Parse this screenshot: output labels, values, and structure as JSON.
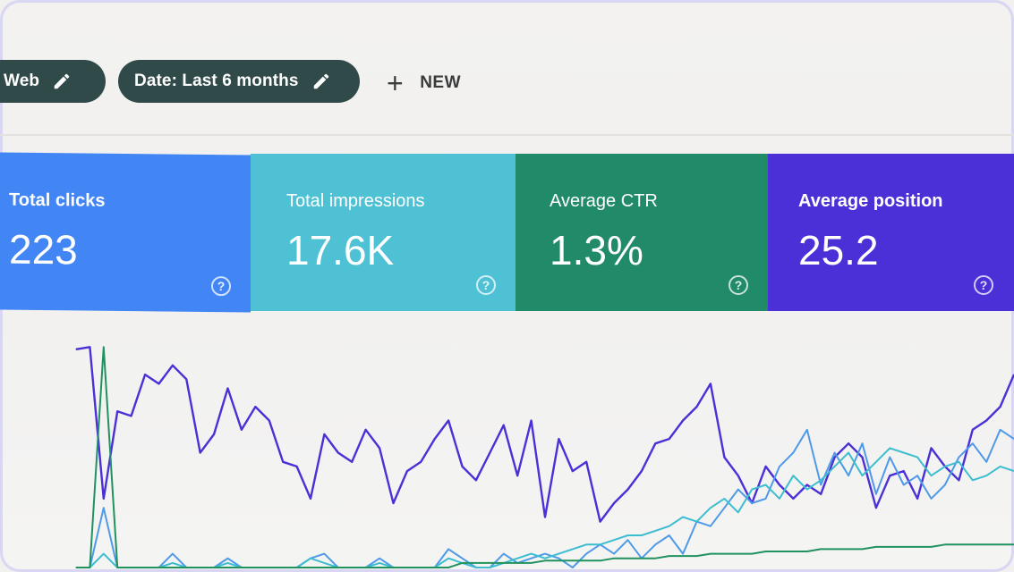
{
  "filters": {
    "type_chip": "Web",
    "date_chip": "Date: Last 6 months",
    "new_label": "NEW"
  },
  "metrics": [
    {
      "label": "Total clicks",
      "value": "223",
      "color": "#4285f4"
    },
    {
      "label": "Total impressions",
      "value": "17.6K",
      "color": "#4fc1d4"
    },
    {
      "label": "Average CTR",
      "value": "1.3%",
      "color": "#218a68"
    },
    {
      "label": "Average position",
      "value": "25.2",
      "color": "#4a30d6"
    }
  ],
  "help_glyph": "?",
  "chart_data": {
    "type": "line",
    "series": [
      {
        "color": "#4a30d6",
        "values": [
          95,
          96,
          30,
          68,
          66,
          84,
          80,
          88,
          82,
          50,
          58,
          78,
          60,
          70,
          64,
          46,
          44,
          30,
          58,
          50,
          46,
          60,
          52,
          28,
          42,
          46,
          56,
          64,
          44,
          38,
          50,
          62,
          40,
          64,
          22,
          56,
          42,
          46,
          20,
          28,
          34,
          42,
          54,
          56,
          64,
          70,
          80,
          48,
          40,
          28,
          44,
          36,
          30,
          36,
          32,
          48,
          54,
          48,
          26,
          40,
          42,
          30,
          52,
          44,
          38,
          60,
          64,
          70,
          84
        ]
      },
      {
        "color": "#4f9ae8",
        "values": [
          0,
          0,
          26,
          0,
          0,
          0,
          0,
          6,
          0,
          0,
          0,
          4,
          0,
          0,
          0,
          0,
          0,
          4,
          6,
          0,
          0,
          0,
          4,
          0,
          0,
          0,
          0,
          8,
          4,
          0,
          0,
          6,
          2,
          4,
          6,
          4,
          0,
          6,
          10,
          6,
          12,
          4,
          10,
          14,
          6,
          20,
          18,
          26,
          34,
          28,
          30,
          44,
          50,
          60,
          36,
          50,
          40,
          54,
          32,
          48,
          36,
          40,
          30,
          36,
          48,
          54,
          46,
          60,
          56
        ]
      },
      {
        "color": "#3dbdd0",
        "values": [
          0,
          0,
          6,
          0,
          0,
          0,
          0,
          2,
          0,
          0,
          0,
          2,
          0,
          0,
          0,
          0,
          0,
          4,
          2,
          0,
          0,
          0,
          2,
          0,
          0,
          0,
          0,
          4,
          2,
          0,
          0,
          2,
          4,
          6,
          4,
          6,
          8,
          10,
          10,
          12,
          14,
          14,
          16,
          18,
          22,
          20,
          26,
          30,
          24,
          34,
          36,
          30,
          40,
          34,
          38,
          44,
          50,
          40,
          46,
          52,
          50,
          48,
          40,
          44,
          46,
          38,
          40,
          44,
          42
        ]
      },
      {
        "color": "#21925f",
        "values": [
          0,
          0,
          96,
          0,
          0,
          0,
          0,
          0,
          0,
          0,
          0,
          0,
          0,
          0,
          0,
          0,
          0,
          0,
          0,
          0,
          0,
          0,
          0,
          0,
          0,
          0,
          0,
          0,
          2,
          2,
          2,
          2,
          2,
          2,
          3,
          3,
          3,
          3,
          3,
          4,
          4,
          4,
          4,
          5,
          5,
          5,
          6,
          6,
          6,
          6,
          7,
          7,
          7,
          7,
          8,
          8,
          8,
          8,
          9,
          9,
          9,
          9,
          9,
          10,
          10,
          10,
          10,
          10,
          10
        ]
      }
    ]
  }
}
